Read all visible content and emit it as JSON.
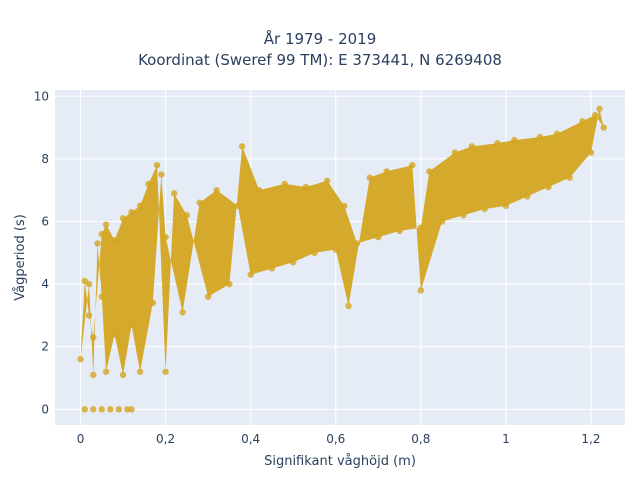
{
  "chart_data": {
    "type": "scatter",
    "title_lines": [
      "År 1979 - 2019",
      "Koordinat (Sweref 99 TM): E 373441, N 6269408"
    ],
    "xlabel": "Signifikant våghöjd (m)",
    "ylabel": "Vågperiod (s)",
    "xlim": [
      -0.06,
      1.28
    ],
    "ylim": [
      -0.5,
      10.2
    ],
    "x_ticks": [
      0,
      0.2,
      0.4,
      0.6,
      0.8,
      1,
      1.2
    ],
    "x_tick_labels": [
      "0",
      "0,2",
      "0,4",
      "0,6",
      "0,8",
      "1",
      "1,2"
    ],
    "y_ticks": [
      0,
      2,
      4,
      6,
      8,
      10
    ],
    "y_tick_labels": [
      "0",
      "2",
      "4",
      "6",
      "8",
      "10"
    ],
    "grid": true,
    "colors": {
      "marker": "#d4a520",
      "plot_bg": "#e5ecf6",
      "grid": "#ffffff"
    },
    "points": [
      [
        0.01,
        0.0
      ],
      [
        0.03,
        0.0
      ],
      [
        0.05,
        0.0
      ],
      [
        0.07,
        0.0
      ],
      [
        0.09,
        0.0
      ],
      [
        0.11,
        0.0
      ],
      [
        0.12,
        0.0
      ],
      [
        0.0,
        1.6
      ],
      [
        0.01,
        4.1
      ],
      [
        0.02,
        4.0
      ],
      [
        0.02,
        3.0
      ],
      [
        0.03,
        1.1
      ],
      [
        0.03,
        2.3
      ],
      [
        0.04,
        5.3
      ],
      [
        0.05,
        5.6
      ],
      [
        0.05,
        3.6
      ],
      [
        0.06,
        5.9
      ],
      [
        0.06,
        1.2
      ],
      [
        0.08,
        5.4
      ],
      [
        0.08,
        2.4
      ],
      [
        0.1,
        6.1
      ],
      [
        0.1,
        1.1
      ],
      [
        0.12,
        6.3
      ],
      [
        0.12,
        2.7
      ],
      [
        0.14,
        6.5
      ],
      [
        0.14,
        1.2
      ],
      [
        0.16,
        7.2
      ],
      [
        0.17,
        3.4
      ],
      [
        0.18,
        7.8
      ],
      [
        0.19,
        7.5
      ],
      [
        0.2,
        1.2
      ],
      [
        0.2,
        5.5
      ],
      [
        0.22,
        6.9
      ],
      [
        0.24,
        3.1
      ],
      [
        0.25,
        6.2
      ],
      [
        0.28,
        6.6
      ],
      [
        0.3,
        3.6
      ],
      [
        0.32,
        7.0
      ],
      [
        0.35,
        4.0
      ],
      [
        0.37,
        6.5
      ],
      [
        0.38,
        8.4
      ],
      [
        0.4,
        4.3
      ],
      [
        0.42,
        7.0
      ],
      [
        0.45,
        4.5
      ],
      [
        0.48,
        7.2
      ],
      [
        0.5,
        4.7
      ],
      [
        0.53,
        7.1
      ],
      [
        0.55,
        5.0
      ],
      [
        0.58,
        7.3
      ],
      [
        0.6,
        5.1
      ],
      [
        0.62,
        6.5
      ],
      [
        0.63,
        3.3
      ],
      [
        0.65,
        5.3
      ],
      [
        0.68,
        7.4
      ],
      [
        0.7,
        5.5
      ],
      [
        0.72,
        7.6
      ],
      [
        0.75,
        5.7
      ],
      [
        0.78,
        7.8
      ],
      [
        0.8,
        5.8
      ],
      [
        0.8,
        3.8
      ],
      [
        0.82,
        7.6
      ],
      [
        0.85,
        6.0
      ],
      [
        0.88,
        8.2
      ],
      [
        0.9,
        6.2
      ],
      [
        0.92,
        8.4
      ],
      [
        0.95,
        6.4
      ],
      [
        0.98,
        8.5
      ],
      [
        1.0,
        6.5
      ],
      [
        1.02,
        8.6
      ],
      [
        1.05,
        6.8
      ],
      [
        1.08,
        8.7
      ],
      [
        1.1,
        7.1
      ],
      [
        1.12,
        8.8
      ],
      [
        1.15,
        7.4
      ],
      [
        1.18,
        9.2
      ],
      [
        1.2,
        8.2
      ],
      [
        1.21,
        9.4
      ],
      [
        1.22,
        9.6
      ],
      [
        1.23,
        9.0
      ]
    ]
  }
}
